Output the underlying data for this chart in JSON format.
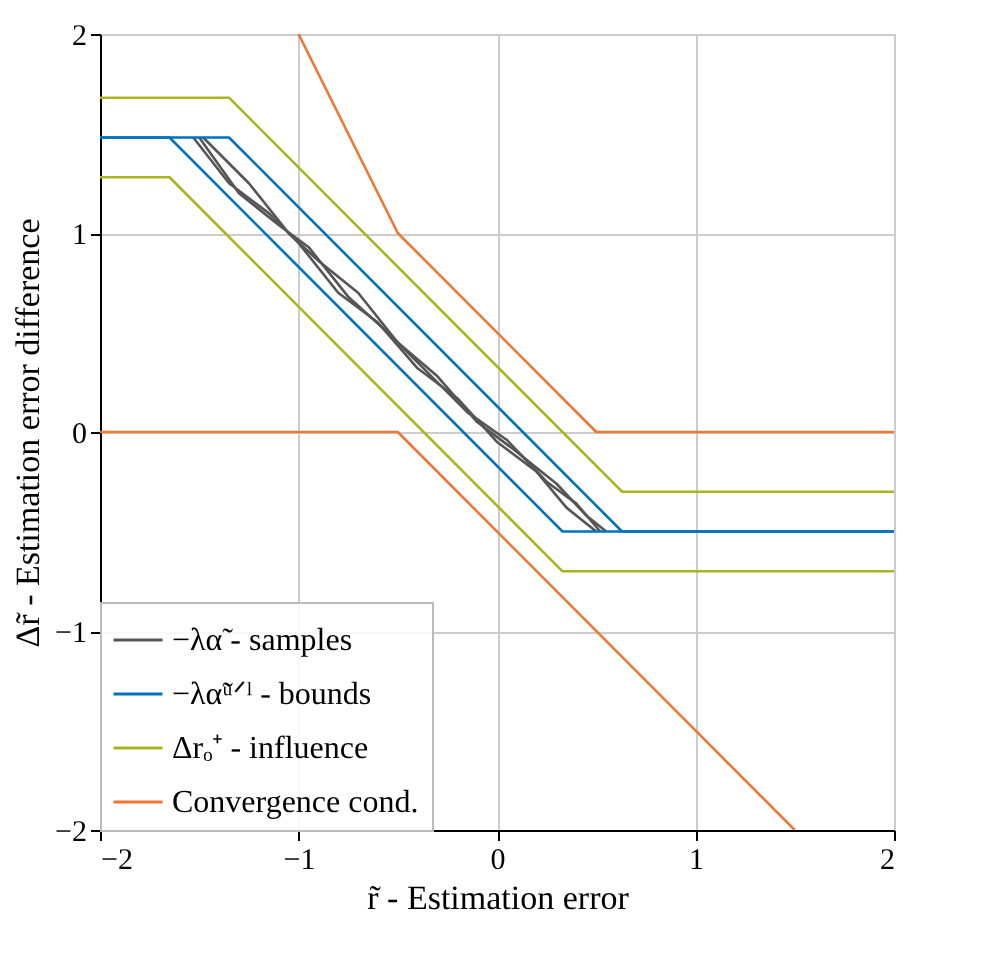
{
  "chart_data": {
    "type": "line",
    "xlabel": "r̃ - Estimation error",
    "ylabel": "Δr̃ - Estimation error difference",
    "xlim": [
      -2,
      2
    ],
    "ylim": [
      -2,
      2
    ],
    "xticks": [
      -2,
      -1,
      0,
      1,
      2
    ],
    "yticks": [
      -2,
      -1,
      0,
      1,
      2
    ],
    "grid": true,
    "legend": "bottom left",
    "line_style": "solid",
    "marker": "none",
    "series": [
      {
        "name": "−λα̃ - samples",
        "color": "#555555",
        "x": [
          -1.53,
          -1.35,
          -1.15,
          -1.0,
          -0.8,
          -0.6,
          -0.4,
          -0.2,
          0.0,
          0.2,
          0.35,
          0.5
        ],
        "values": [
          1.48,
          1.25,
          1.1,
          0.95,
          0.7,
          0.55,
          0.32,
          0.17,
          -0.05,
          -0.2,
          -0.38,
          -0.5
        ]
      },
      {
        "color": "#555555",
        "x": [
          -1.5,
          -1.3,
          -1.1,
          -0.95,
          -0.75,
          -0.55,
          -0.35,
          -0.15,
          0.05,
          0.25,
          0.4,
          0.52
        ],
        "values": [
          1.48,
          1.2,
          1.04,
          0.93,
          0.68,
          0.5,
          0.3,
          0.1,
          -0.04,
          -0.25,
          -0.36,
          -0.5
        ]
      },
      {
        "color": "#555555",
        "x": [
          -1.48,
          -1.25,
          -1.05,
          -0.9,
          -0.7,
          -0.5,
          -0.3,
          -0.1,
          0.1,
          0.3,
          0.45,
          0.55
        ],
        "values": [
          1.48,
          1.25,
          1.0,
          0.86,
          0.7,
          0.45,
          0.28,
          0.05,
          -0.1,
          -0.26,
          -0.42,
          -0.5
        ]
      },
      {
        "name": "−λα̃ᵘᐟˡ - bounds",
        "color": "#0072bd",
        "x": [
          -2,
          -1.35,
          0.63,
          2
        ],
        "values": [
          1.48,
          1.48,
          -0.5,
          -0.5
        ]
      },
      {
        "color": "#0072bd",
        "x": [
          -2,
          -1.65,
          0.33,
          2
        ],
        "values": [
          1.48,
          1.48,
          -0.5,
          -0.5
        ]
      },
      {
        "name": "Δrₒ⁺ - influence",
        "color": "#a9b51f",
        "x": [
          -2,
          -1.35,
          0.63,
          2
        ],
        "values": [
          1.68,
          1.68,
          -0.3,
          -0.3
        ]
      },
      {
        "color": "#a9b51f",
        "x": [
          -2,
          -1.65,
          0.33,
          2
        ],
        "values": [
          1.28,
          1.28,
          -0.7,
          -0.7
        ]
      },
      {
        "name": "Convergence cond.",
        "color": "#ee7733",
        "x": [
          -1.0,
          -0.5,
          0.5,
          2
        ],
        "values": [
          2,
          1,
          0,
          0
        ]
      },
      {
        "color": "#ee7733",
        "x": [
          -2,
          -0.5,
          1.5
        ],
        "values": [
          0,
          0,
          -2
        ]
      }
    ]
  }
}
